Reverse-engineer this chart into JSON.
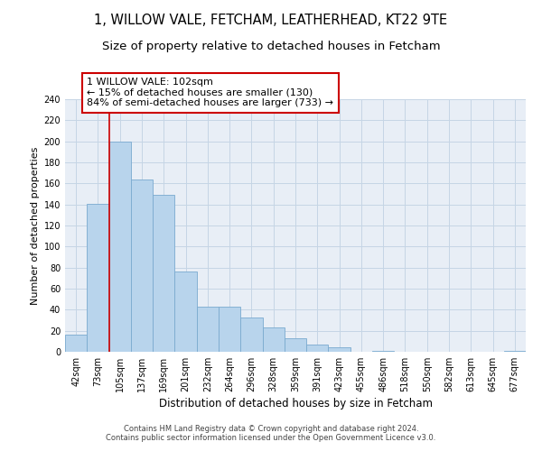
{
  "title": "1, WILLOW VALE, FETCHAM, LEATHERHEAD, KT22 9TE",
  "subtitle": "Size of property relative to detached houses in Fetcham",
  "xlabel": "Distribution of detached houses by size in Fetcham",
  "ylabel": "Number of detached properties",
  "bar_labels": [
    "42sqm",
    "73sqm",
    "105sqm",
    "137sqm",
    "169sqm",
    "201sqm",
    "232sqm",
    "264sqm",
    "296sqm",
    "328sqm",
    "359sqm",
    "391sqm",
    "423sqm",
    "455sqm",
    "486sqm",
    "518sqm",
    "550sqm",
    "582sqm",
    "613sqm",
    "645sqm",
    "677sqm"
  ],
  "bar_values": [
    16,
    141,
    200,
    164,
    149,
    76,
    43,
    43,
    33,
    23,
    13,
    7,
    4,
    0,
    1,
    0,
    0,
    0,
    0,
    0,
    1
  ],
  "bar_color": "#b8d4ec",
  "bar_edge_color": "#7aaacf",
  "vline_color": "#cc0000",
  "annotation_line1": "1 WILLOW VALE: 102sqm",
  "annotation_line2": "← 15% of detached houses are smaller (130)",
  "annotation_line3": "84% of semi-detached houses are larger (733) →",
  "annotation_box_edge_color": "#cc0000",
  "ylim": [
    0,
    240
  ],
  "yticks": [
    0,
    20,
    40,
    60,
    80,
    100,
    120,
    140,
    160,
    180,
    200,
    220,
    240
  ],
  "background_color": "#ffffff",
  "plot_bg_color": "#e8eef6",
  "grid_color": "#c5d5e5",
  "footer_text": "Contains HM Land Registry data © Crown copyright and database right 2024.\nContains public sector information licensed under the Open Government Licence v3.0.",
  "title_fontsize": 10.5,
  "subtitle_fontsize": 9.5,
  "xlabel_fontsize": 8.5,
  "ylabel_fontsize": 8,
  "tick_fontsize": 7,
  "annotation_fontsize": 8,
  "footer_fontsize": 6
}
